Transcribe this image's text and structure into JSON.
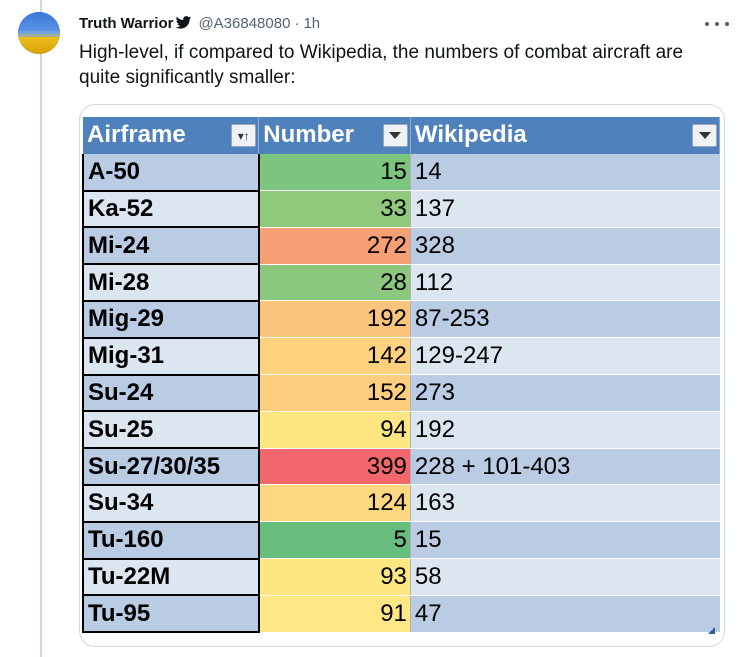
{
  "tweet": {
    "author_name": "Truth Warrior",
    "author_handle": "@A36848080",
    "separator": "·",
    "time": "1h",
    "text": "High-level, if compared to Wikipedia, the numbers of combat aircraft are quite significantly smaller:"
  },
  "icons": {
    "verified": "heart-icon",
    "more": "more-options-icon",
    "sort": "sort-ascending-filter-icon",
    "dropdown": "filter-dropdown-icon",
    "resize": "table-resize-handle-icon"
  },
  "colors": {
    "header_bg": "#4f81bd",
    "row_band_dark": "#b9cce4",
    "row_band_light": "#dce6f1",
    "text_secondary": "#536471"
  },
  "sheet": {
    "headers": [
      "Airframe",
      "Number",
      "Wikipedia"
    ],
    "rows": [
      {
        "airframe": "A-50",
        "number": "15",
        "wikipedia": "14",
        "color": "#7cc57f"
      },
      {
        "airframe": "Ka-52",
        "number": "33",
        "wikipedia": "137",
        "color": "#91c97c"
      },
      {
        "airframe": "Mi-24",
        "number": "272",
        "wikipedia": "328",
        "color": "#f8a075"
      },
      {
        "airframe": "Mi-28",
        "number": "28",
        "wikipedia": "112",
        "color": "#8bc77c"
      },
      {
        "airframe": "Mig-29",
        "number": "192",
        "wikipedia": "87-253",
        "color": "#fbc47d"
      },
      {
        "airframe": "Mig-31",
        "number": "142",
        "wikipedia": "129-247",
        "color": "#fed17f"
      },
      {
        "airframe": "Su-24",
        "number": "152",
        "wikipedia": "273",
        "color": "#fece7e"
      },
      {
        "airframe": "Su-25",
        "number": "94",
        "wikipedia": "192",
        "color": "#fee683"
      },
      {
        "airframe": "Su-27/30/35",
        "number": "399",
        "wikipedia": "228 + 101-403",
        "color": "#f2676c"
      },
      {
        "airframe": "Su-34",
        "number": "124",
        "wikipedia": "163",
        "color": "#fed880"
      },
      {
        "airframe": "Tu-160",
        "number": "5",
        "wikipedia": "15",
        "color": "#66bd7d"
      },
      {
        "airframe": "Tu-22M",
        "number": "93",
        "wikipedia": "58",
        "color": "#fee683"
      },
      {
        "airframe": "Tu-95",
        "number": "91",
        "wikipedia": "47",
        "color": "#fee784"
      }
    ]
  }
}
